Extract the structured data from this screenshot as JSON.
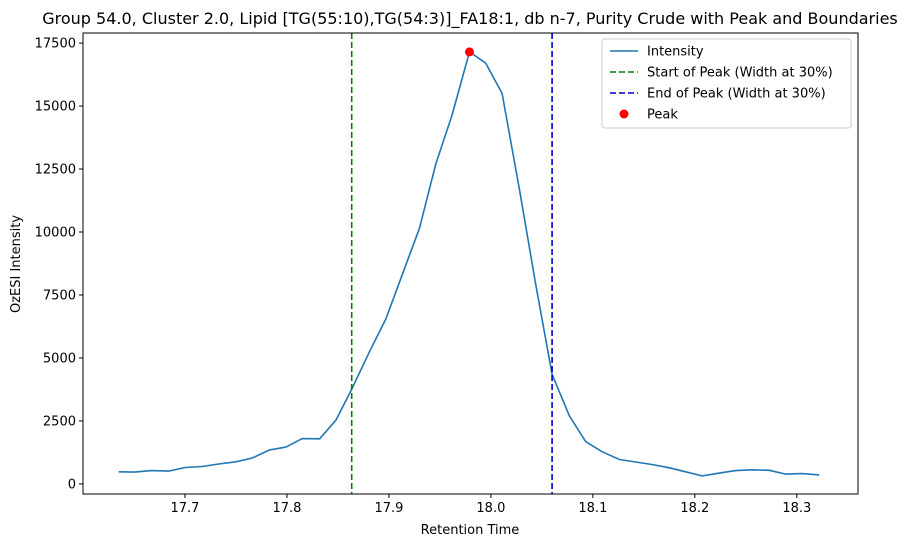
{
  "chart_data": {
    "type": "line",
    "title": "Group 54.0, Cluster 2.0, Lipid [TG(55:10),TG(54:3)]_FA18:1, db n-7, Purity Crude with Peak and Boundaries",
    "xlabel": "Retention Time",
    "ylabel": "OzESI Intensity",
    "xlim": [
      17.6,
      18.36
    ],
    "ylim": [
      -400,
      17900
    ],
    "xticks": [
      17.7,
      17.8,
      17.9,
      18.0,
      18.1,
      18.2,
      18.3
    ],
    "xtick_labels": [
      "17.7",
      "17.8",
      "17.9",
      "18.0",
      "18.1",
      "18.2",
      "18.3"
    ],
    "yticks": [
      0,
      2500,
      5000,
      7500,
      10000,
      12500,
      15000,
      17500
    ],
    "ytick_labels": [
      "0",
      "2500",
      "5000",
      "7500",
      "10000",
      "12500",
      "15000",
      "17500"
    ],
    "grid": false,
    "legend_position": "top-right",
    "series": [
      {
        "name": "Intensity",
        "color": "#1f77b4",
        "style": "solid",
        "x": [
          17.635,
          17.651,
          17.667,
          17.684,
          17.7,
          17.717,
          17.733,
          17.75,
          17.766,
          17.783,
          17.799,
          17.815,
          17.832,
          17.848,
          17.864,
          17.881,
          17.897,
          17.913,
          17.93,
          17.946,
          17.962,
          17.979,
          17.995,
          18.011,
          18.028,
          18.044,
          18.06,
          18.077,
          18.093,
          18.109,
          18.126,
          18.142,
          18.158,
          18.175,
          18.191,
          18.207,
          18.224,
          18.24,
          18.256,
          18.273,
          18.289,
          18.305,
          18.322
        ],
        "y": [
          480,
          470,
          530,
          510,
          650,
          690,
          790,
          880,
          1030,
          1350,
          1460,
          1800,
          1790,
          2530,
          3800,
          5250,
          6550,
          8300,
          10150,
          12700,
          14650,
          17150,
          16700,
          15500,
          11700,
          7900,
          4350,
          2700,
          1680,
          1280,
          970,
          870,
          770,
          640,
          480,
          320,
          430,
          530,
          560,
          540,
          390,
          410,
          360
        ]
      },
      {
        "name": "Start of Peak (Width at 30%)",
        "color": "#008000",
        "style": "dashed",
        "vline_x": 17.8635
      },
      {
        "name": "End of Peak (Width at 30%)",
        "color": "#0000cc",
        "style": "dashed",
        "vline_x": 18.06
      },
      {
        "name": "Peak",
        "color": "#ff0000",
        "style": "marker",
        "x": [
          17.979
        ],
        "y": [
          17150
        ]
      }
    ]
  }
}
